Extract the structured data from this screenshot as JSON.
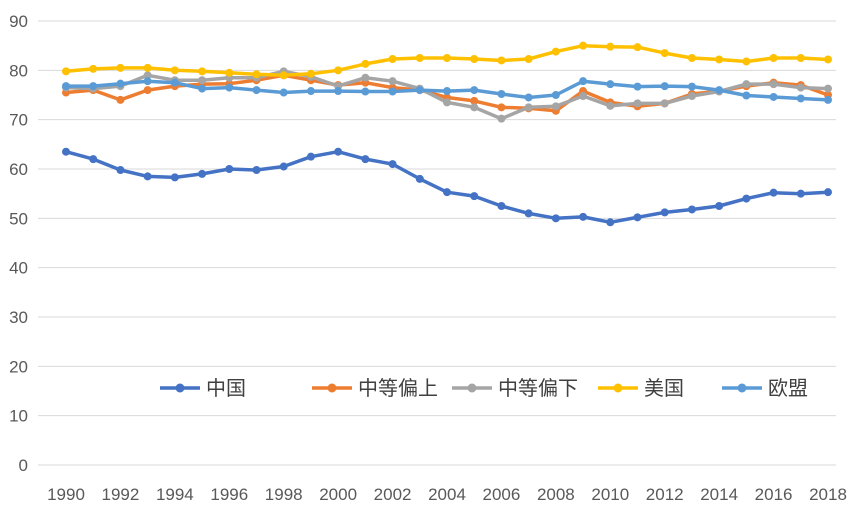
{
  "chart_data": {
    "type": "line",
    "title": "",
    "xlabel": "",
    "ylabel": "",
    "ylim": [
      0,
      90
    ],
    "yticks": [
      0,
      10,
      20,
      30,
      40,
      50,
      60,
      70,
      80,
      90
    ],
    "x": [
      1990,
      1991,
      1992,
      1993,
      1994,
      1995,
      1996,
      1997,
      1998,
      1999,
      2000,
      2001,
      2002,
      2003,
      2004,
      2005,
      2006,
      2007,
      2008,
      2009,
      2010,
      2011,
      2012,
      2013,
      2014,
      2015,
      2016,
      2017,
      2018
    ],
    "xtick_labels": [
      "1990",
      "1992",
      "1994",
      "1996",
      "1998",
      "2000",
      "2002",
      "2004",
      "2006",
      "2008",
      "2010",
      "2012",
      "2014",
      "2016",
      "2018"
    ],
    "legend_position": "lower-right-inside",
    "series": [
      {
        "name": "中国",
        "color": "#4472C4",
        "values": [
          63.5,
          62.0,
          59.8,
          58.5,
          58.3,
          59.0,
          60.0,
          59.8,
          60.5,
          62.5,
          63.5,
          62.0,
          61.0,
          58.0,
          55.3,
          54.5,
          52.5,
          51.0,
          50.0,
          50.3,
          49.2,
          50.2,
          51.2,
          51.8,
          52.5,
          54.0,
          55.2,
          55.0,
          55.3
        ]
      },
      {
        "name": "中等偏上",
        "color": "#ED7D31",
        "values": [
          75.5,
          76.0,
          74.0,
          76.0,
          76.8,
          77.2,
          77.3,
          78.0,
          79.0,
          78.0,
          77.0,
          77.5,
          76.5,
          76.0,
          74.5,
          73.8,
          72.5,
          72.3,
          71.8,
          75.8,
          73.5,
          72.7,
          73.3,
          75.2,
          75.8,
          76.8,
          77.5,
          77.0,
          75.0
        ]
      },
      {
        "name": "中等偏下",
        "color": "#A5A5A5",
        "values": [
          76.5,
          76.3,
          76.8,
          79.0,
          78.0,
          78.0,
          78.5,
          78.5,
          79.8,
          78.7,
          76.8,
          78.5,
          77.8,
          76.3,
          73.5,
          72.5,
          70.2,
          72.5,
          72.7,
          74.8,
          72.8,
          73.3,
          73.3,
          74.8,
          75.7,
          77.2,
          77.2,
          76.5,
          76.3
        ]
      },
      {
        "name": "美国",
        "color": "#FFC000",
        "values": [
          79.8,
          80.3,
          80.5,
          80.5,
          80.0,
          79.8,
          79.5,
          79.2,
          79.0,
          79.3,
          80.0,
          81.3,
          82.3,
          82.5,
          82.5,
          82.3,
          82.0,
          82.3,
          83.8,
          85.0,
          84.8,
          84.7,
          83.5,
          82.5,
          82.2,
          81.8,
          82.5,
          82.5,
          82.2
        ]
      },
      {
        "name": "欧盟",
        "color": "#5B9BD5",
        "values": [
          76.8,
          76.8,
          77.3,
          77.8,
          77.5,
          76.3,
          76.5,
          76.0,
          75.5,
          75.8,
          75.8,
          75.7,
          75.7,
          76.0,
          75.8,
          76.0,
          75.2,
          74.5,
          75.0,
          77.8,
          77.2,
          76.7,
          76.8,
          76.7,
          76.0,
          74.9,
          74.6,
          74.3,
          74.0
        ]
      }
    ]
  }
}
